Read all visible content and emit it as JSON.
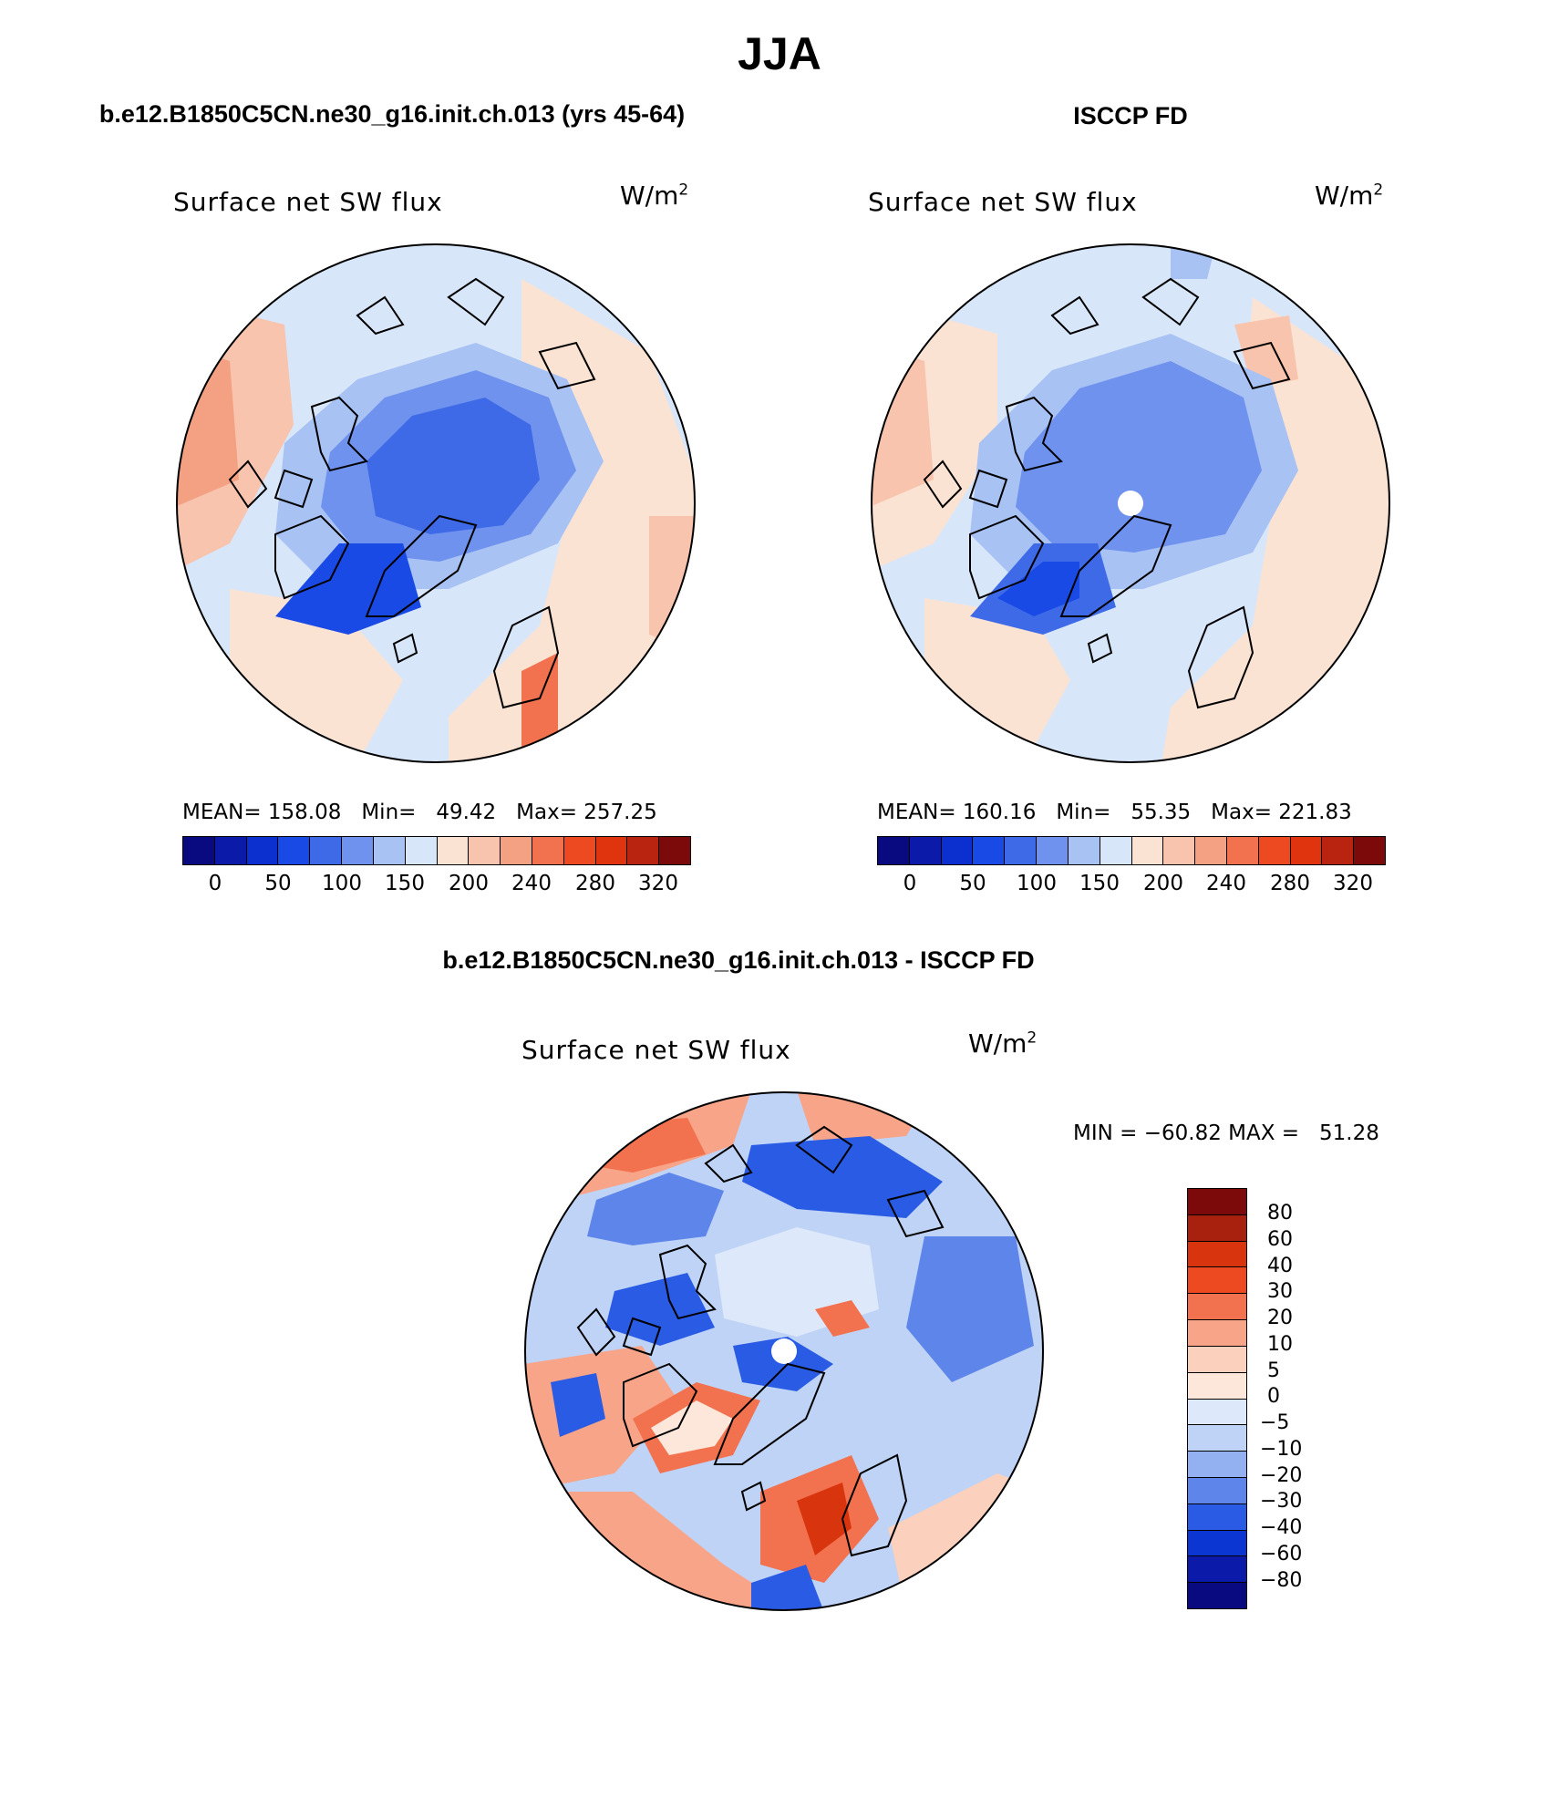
{
  "title": "JJA",
  "top_left": {
    "header": "b.e12.B1850C5CN.ne30_g16.init.ch.013 (yrs 45-64)",
    "plot_title": "Surface net SW flux",
    "units": "W/m",
    "units_sup": "2",
    "mean_label": "MEAN= 158.08",
    "min_label": "Min=   49.42",
    "max_label": "Max= 257.25"
  },
  "top_right": {
    "header": "ISCCP FD",
    "plot_title": "Surface net SW flux",
    "units": "W/m",
    "units_sup": "2",
    "mean_label": "MEAN= 160.16",
    "min_label": "Min=   55.35",
    "max_label": "Max= 221.83"
  },
  "bottom": {
    "header": "b.e12.B1850C5CN.ne30_g16.init.ch.013 - ISCCP FD",
    "plot_title": "Surface net SW flux",
    "units": "W/m",
    "units_sup": "2",
    "minmax_label": "MIN = −60.82 MAX =   51.28"
  },
  "horizontal_colorbar": {
    "colors": [
      "#0a0a80",
      "#0b1aa8",
      "#0c2fd0",
      "#1a4ae6",
      "#3e6ae8",
      "#6f92ee",
      "#a8c2f4",
      "#d8e6fa",
      "#fbe3d4",
      "#f8c4ad",
      "#f4a083",
      "#f2714e",
      "#ee4a22",
      "#e0340f",
      "#b82410",
      "#7c0a0a"
    ],
    "tick_labels": [
      "0",
      "50",
      "100",
      "150",
      "200",
      "240",
      "280",
      "320"
    ]
  },
  "vertical_colorbar": {
    "colors": [
      "#7c0a0a",
      "#a8200e",
      "#d8340e",
      "#ee4a22",
      "#f2714e",
      "#f8a488",
      "#fbd0bc",
      "#fce7da",
      "#dde9fa",
      "#bfd3f6",
      "#93b1f0",
      "#5e86ea",
      "#2a5be4",
      "#0c36d2",
      "#0b1aa8",
      "#0a0a80"
    ],
    "tick_labels": [
      "80",
      "60",
      "40",
      "30",
      "20",
      "10",
      "5",
      "0",
      "−5",
      "−10",
      "−20",
      "−30",
      "−40",
      "−60",
      "−80"
    ]
  }
}
